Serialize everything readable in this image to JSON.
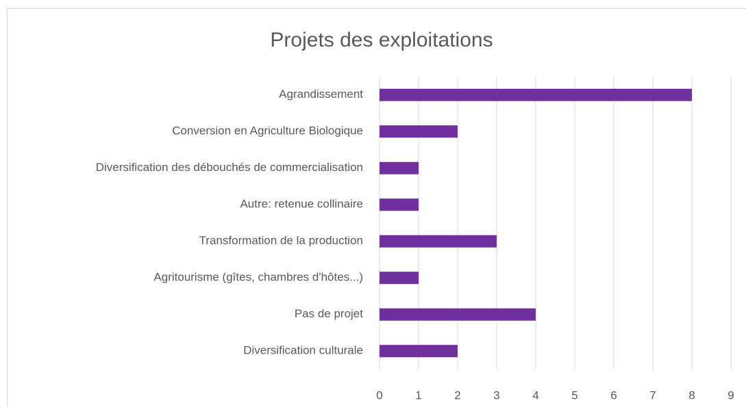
{
  "chart_data": {
    "type": "bar",
    "orientation": "horizontal",
    "title": "Projets des exploitations",
    "categories": [
      "Agrandissement",
      "Conversion en Agriculture Biologique",
      "Diversification des débouchés de commercialisation",
      "Autre: retenue collinaire",
      "Transformation de la production",
      "Agritourisme (gîtes, chambres d'hôtes...)",
      "Pas de projet",
      "Diversification culturale"
    ],
    "values": [
      8,
      2,
      1,
      1,
      3,
      1,
      4,
      2
    ],
    "color": "#7030a0",
    "xlim": [
      0,
      9
    ],
    "xticks": [
      0,
      1,
      2,
      3,
      4,
      5,
      6,
      7,
      8,
      9
    ],
    "grid": true
  }
}
